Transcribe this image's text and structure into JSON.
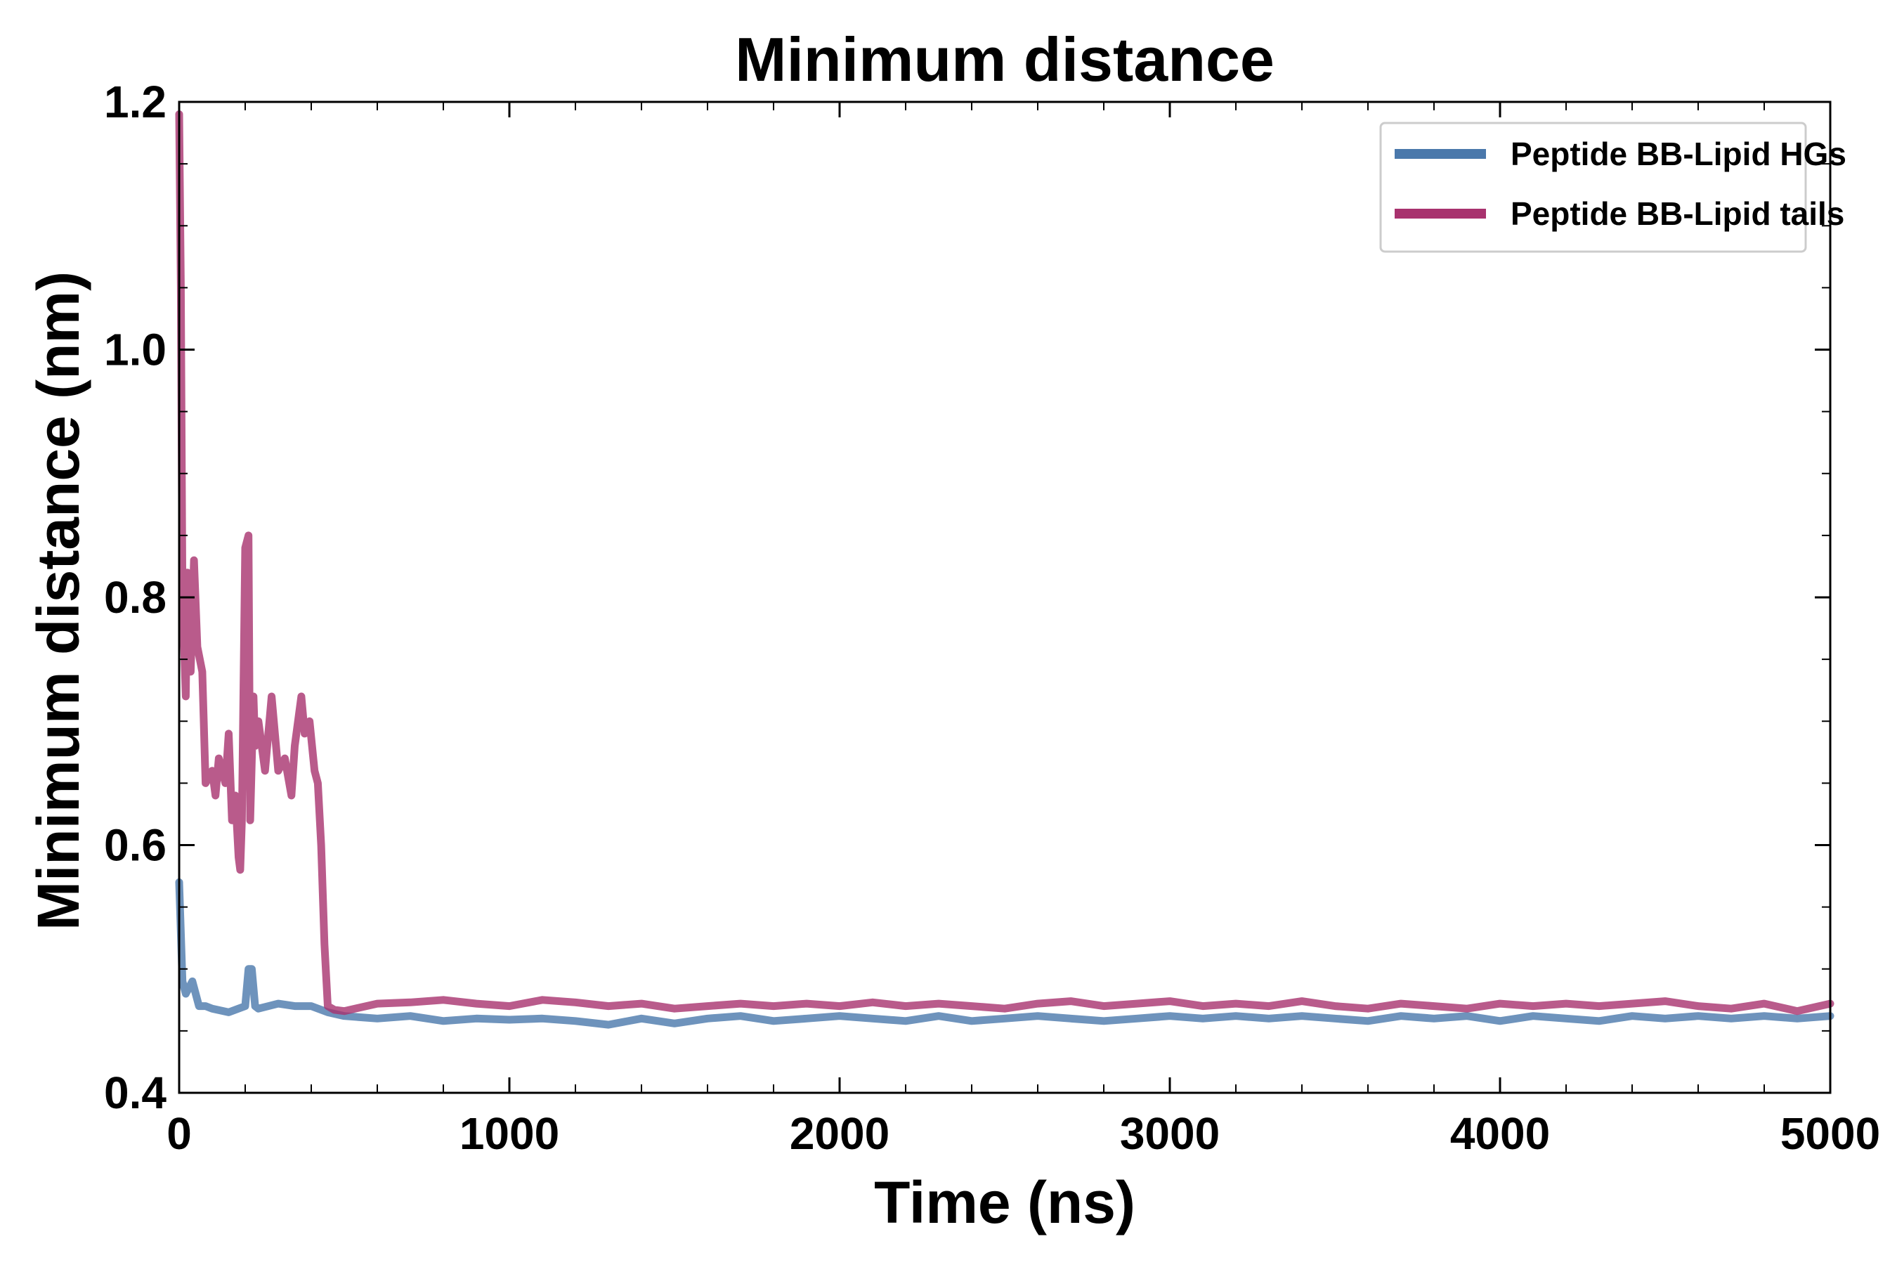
{
  "chart_data": {
    "type": "line",
    "title": "Minimum distance",
    "xlabel": "Time (ns)",
    "ylabel": "Minimum distance (nm)",
    "xlim": [
      0,
      5000
    ],
    "ylim": [
      0.4,
      1.2
    ],
    "xticks": [
      0,
      1000,
      2000,
      3000,
      4000,
      5000
    ],
    "xtick_labels": [
      "0",
      "1000",
      "2000",
      "3000",
      "4000",
      "5000"
    ],
    "yticks": [
      0.4,
      0.6,
      0.8,
      1.0,
      1.2
    ],
    "ytick_labels": [
      "0.4",
      "0.6",
      "0.8",
      "1.0",
      "1.2"
    ],
    "grid": false,
    "legend_position": "top-right",
    "series": [
      {
        "name": "Peptide BB-Lipid HGs",
        "color": "#4a78ab",
        "x": [
          0,
          10,
          20,
          40,
          60,
          80,
          100,
          150,
          200,
          210,
          220,
          230,
          240,
          300,
          350,
          400,
          450,
          500,
          600,
          700,
          800,
          900,
          1000,
          1100,
          1200,
          1300,
          1400,
          1500,
          1600,
          1700,
          1800,
          1900,
          2000,
          2100,
          2200,
          2300,
          2400,
          2500,
          2600,
          2700,
          2800,
          2900,
          3000,
          3100,
          3200,
          3300,
          3400,
          3500,
          3600,
          3700,
          3800,
          3900,
          4000,
          4100,
          4200,
          4300,
          4400,
          4500,
          4600,
          4700,
          4800,
          4900,
          5000
        ],
        "y": [
          0.57,
          0.49,
          0.48,
          0.49,
          0.47,
          0.47,
          0.468,
          0.465,
          0.47,
          0.5,
          0.5,
          0.47,
          0.468,
          0.472,
          0.47,
          0.47,
          0.465,
          0.462,
          0.46,
          0.462,
          0.458,
          0.46,
          0.459,
          0.46,
          0.458,
          0.455,
          0.46,
          0.456,
          0.46,
          0.462,
          0.458,
          0.46,
          0.462,
          0.46,
          0.458,
          0.462,
          0.458,
          0.46,
          0.462,
          0.46,
          0.458,
          0.46,
          0.462,
          0.46,
          0.462,
          0.46,
          0.462,
          0.46,
          0.458,
          0.462,
          0.46,
          0.462,
          0.458,
          0.462,
          0.46,
          0.458,
          0.462,
          0.46,
          0.462,
          0.46,
          0.462,
          0.46,
          0.462
        ]
      },
      {
        "name": "Peptide BB-Lipid tails",
        "color": "#a8326e",
        "x": [
          0,
          5,
          10,
          20,
          25,
          35,
          45,
          55,
          70,
          80,
          100,
          110,
          120,
          140,
          150,
          160,
          170,
          180,
          185,
          190,
          200,
          210,
          215,
          225,
          230,
          240,
          260,
          280,
          300,
          320,
          340,
          350,
          370,
          380,
          395,
          410,
          420,
          430,
          440,
          450,
          470,
          500,
          600,
          700,
          800,
          900,
          1000,
          1100,
          1200,
          1300,
          1400,
          1500,
          1600,
          1700,
          1800,
          1900,
          2000,
          2100,
          2200,
          2300,
          2400,
          2500,
          2600,
          2700,
          2800,
          2900,
          3000,
          3100,
          3200,
          3300,
          3400,
          3500,
          3600,
          3700,
          3800,
          3900,
          4000,
          4100,
          4200,
          4300,
          4400,
          4500,
          4600,
          4700,
          4800,
          4900,
          5000
        ],
        "y": [
          1.19,
          1.05,
          0.8,
          0.72,
          0.82,
          0.74,
          0.83,
          0.76,
          0.74,
          0.65,
          0.66,
          0.64,
          0.67,
          0.65,
          0.69,
          0.62,
          0.64,
          0.59,
          0.58,
          0.62,
          0.84,
          0.85,
          0.62,
          0.72,
          0.68,
          0.7,
          0.66,
          0.72,
          0.66,
          0.67,
          0.64,
          0.68,
          0.72,
          0.69,
          0.7,
          0.66,
          0.65,
          0.6,
          0.52,
          0.47,
          0.467,
          0.466,
          0.472,
          0.473,
          0.475,
          0.472,
          0.47,
          0.475,
          0.473,
          0.47,
          0.472,
          0.468,
          0.47,
          0.472,
          0.47,
          0.472,
          0.47,
          0.473,
          0.47,
          0.472,
          0.47,
          0.468,
          0.472,
          0.474,
          0.47,
          0.472,
          0.474,
          0.47,
          0.472,
          0.47,
          0.474,
          0.47,
          0.468,
          0.472,
          0.47,
          0.468,
          0.472,
          0.47,
          0.472,
          0.47,
          0.472,
          0.474,
          0.47,
          0.468,
          0.472,
          0.466,
          0.472
        ]
      }
    ]
  }
}
